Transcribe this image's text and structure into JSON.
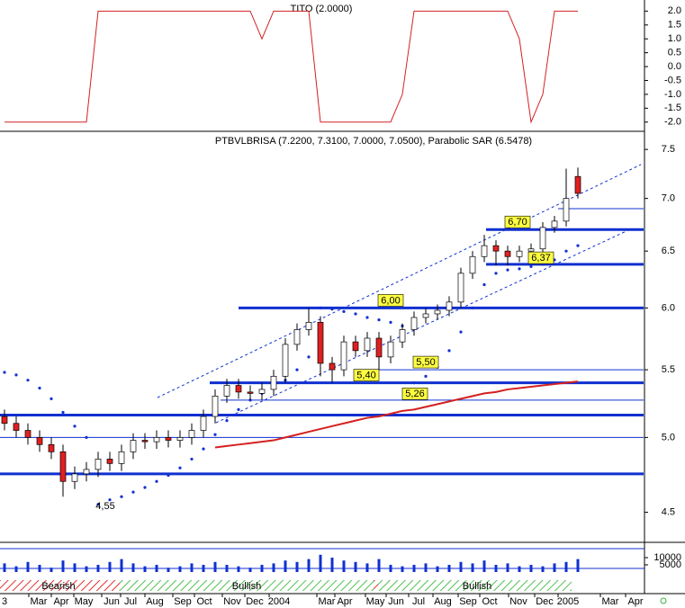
{
  "chart_data": [
    {
      "type": "line",
      "title": "TITO (2.0000)",
      "color": "#d42020",
      "values": [
        -2,
        -2,
        -2,
        -2,
        -2,
        -2,
        -2,
        -2,
        2,
        2,
        2,
        2,
        2,
        2,
        2,
        2,
        2,
        2,
        2,
        2,
        2,
        2,
        1,
        2,
        2,
        2,
        2,
        -2,
        -2,
        -2,
        -2,
        -2,
        -2,
        -2,
        -1,
        2,
        2,
        2,
        2,
        2,
        2,
        2,
        2,
        2,
        1,
        -2,
        -1,
        2,
        2,
        2
      ],
      "ylim": [
        -2.3,
        2.4
      ],
      "yticks": [
        {
          "value": 2,
          "label": "2.0"
        },
        1.5,
        {
          "value": 1,
          "label": "1.0"
        },
        0.5,
        {
          "value": 0,
          "label": "0.0"
        },
        -0.5,
        {
          "value": -1,
          "label": "-1.0"
        },
        -1.5,
        {
          "value": -2,
          "label": "-2.0"
        }
      ]
    },
    {
      "type": "candlestick",
      "title": "PTBVLBRISA (7.2200, 7.3100, 7.0000, 7.0500), Parabolic SAR (6.5478)",
      "open": [
        5.15,
        5.1,
        5.05,
        5.0,
        4.95,
        4.9,
        4.7,
        4.75,
        4.78,
        4.85,
        4.82,
        4.9,
        4.98,
        4.97,
        5.0,
        4.98,
        5.0,
        5.05,
        5.15,
        5.3,
        5.38,
        5.33,
        5.32,
        5.35,
        5.45,
        5.7,
        5.82,
        5.88,
        5.55,
        5.5,
        5.72,
        5.65,
        5.75,
        5.6,
        5.72,
        5.82,
        5.92,
        5.95,
        5.98,
        6.05,
        6.3,
        6.45,
        6.55,
        6.5,
        6.45,
        6.5,
        6.52,
        6.72,
        6.78,
        7.22
      ],
      "high": [
        5.2,
        5.15,
        5.1,
        5.05,
        5.0,
        4.95,
        4.8,
        4.83,
        4.9,
        4.9,
        4.95,
        5.03,
        5.03,
        5.05,
        5.05,
        5.05,
        5.1,
        5.2,
        5.35,
        5.43,
        5.43,
        5.38,
        5.4,
        5.5,
        5.75,
        5.87,
        6.0,
        5.93,
        5.6,
        5.77,
        5.77,
        5.8,
        5.8,
        5.77,
        5.87,
        5.97,
        6.0,
        6.03,
        6.1,
        6.35,
        6.5,
        6.65,
        6.6,
        6.55,
        6.55,
        6.57,
        6.77,
        6.83,
        7.3,
        7.31
      ],
      "low": [
        5.05,
        5.0,
        4.95,
        4.9,
        4.85,
        4.6,
        4.65,
        4.7,
        4.73,
        4.77,
        4.77,
        4.85,
        4.92,
        4.92,
        4.93,
        4.93,
        4.95,
        5.0,
        5.1,
        5.25,
        5.28,
        5.27,
        5.27,
        5.3,
        5.4,
        5.65,
        5.77,
        5.45,
        5.4,
        5.45,
        5.6,
        5.6,
        5.5,
        5.55,
        5.67,
        5.77,
        5.87,
        5.9,
        5.93,
        6.0,
        6.25,
        6.4,
        6.37,
        6.37,
        6.4,
        6.45,
        6.47,
        6.67,
        6.73,
        7.0
      ],
      "close": [
        5.1,
        5.05,
        5.0,
        4.95,
        4.9,
        4.7,
        4.75,
        4.78,
        4.85,
        4.82,
        4.9,
        4.98,
        4.97,
        5.0,
        4.98,
        5.0,
        5.05,
        5.15,
        5.3,
        5.38,
        5.33,
        5.32,
        5.35,
        5.45,
        5.7,
        5.82,
        5.88,
        5.55,
        5.5,
        5.72,
        5.65,
        5.75,
        5.6,
        5.72,
        5.82,
        5.92,
        5.95,
        5.98,
        6.05,
        6.3,
        6.45,
        6.55,
        6.5,
        6.45,
        6.5,
        6.52,
        6.72,
        6.78,
        7.0,
        7.05
      ],
      "sar": [
        5.48,
        5.46,
        5.42,
        5.36,
        5.28,
        5.18,
        5.08,
        5.0,
        4.55,
        4.58,
        4.6,
        4.63,
        4.66,
        4.7,
        4.74,
        4.79,
        4.85,
        4.92,
        5.02,
        5.12,
        5.2,
        5.27,
        5.32,
        5.38,
        5.42,
        5.5,
        5.6,
        6.0,
        5.99,
        5.97,
        5.95,
        5.92,
        5.9,
        5.88,
        5.85,
        5.4,
        5.45,
        5.52,
        5.65,
        5.8,
        6.0,
        6.2,
        6.3,
        6.33,
        6.34,
        6.36,
        6.38,
        6.42,
        6.5,
        6.55
      ],
      "ma": [
        null,
        null,
        null,
        null,
        null,
        null,
        null,
        null,
        null,
        null,
        null,
        null,
        null,
        null,
        null,
        null,
        null,
        null,
        4.93,
        4.94,
        4.95,
        4.96,
        4.97,
        4.98,
        5.0,
        5.02,
        5.04,
        5.06,
        5.08,
        5.1,
        5.12,
        5.14,
        5.15,
        5.17,
        5.19,
        5.2,
        5.22,
        5.24,
        5.26,
        5.28,
        5.3,
        5.32,
        5.33,
        5.35,
        5.36,
        5.37,
        5.38,
        5.39,
        5.4,
        5.41
      ],
      "up_color": "#ffffff",
      "down_color": "#e02020",
      "sar_color": "#1030d0",
      "ma_color": "#d42020",
      "log": true,
      "ylim": [
        4.33,
        7.53
      ],
      "yticks": [
        7.5,
        {
          "value": 7,
          "label": "7.0"
        },
        6.5,
        {
          "value": 6,
          "label": "6.0"
        },
        5.5,
        {
          "value": 5,
          "label": "5.0"
        },
        4.5
      ],
      "levels": [
        {
          "value": 5.16,
          "thick": true
        },
        {
          "value": 4.75,
          "thick": true
        },
        {
          "value": 6.0,
          "thick": true
        },
        {
          "value": 5.4,
          "thick": true
        },
        {
          "value": 6.7,
          "thick": true
        },
        {
          "value": 6.38,
          "thick": true
        },
        {
          "value": 6.9,
          "thick": false
        },
        {
          "value": 5.5,
          "thick": false
        },
        {
          "value": 5.27,
          "thick": false
        },
        {
          "value": 5.0,
          "thick": false
        }
      ],
      "annotations": [
        {
          "label": "6,70",
          "value": 6.7,
          "box": true
        },
        {
          "label": "6,37",
          "value": 6.37,
          "box": true
        },
        {
          "label": "6,00",
          "value": 6.0,
          "box": true
        },
        {
          "label": "5,50",
          "value": 5.5,
          "box": true
        },
        {
          "label": "5,40",
          "value": 5.4,
          "box": true
        },
        {
          "label": "5,26",
          "value": 5.26,
          "box": true
        },
        {
          "label": "4,55",
          "value": 4.55,
          "box": false
        }
      ],
      "x_labels": [
        "3",
        "Mar",
        "Apr",
        "May",
        "Jun",
        "Jul",
        "Aug",
        "Sep",
        "Oct",
        "Nov",
        "Dec",
        "2004",
        "Mar",
        "Apr",
        "May",
        "Jun",
        "Jul",
        "Aug",
        "Sep",
        "Oct",
        "Nov",
        "Dec",
        "2005",
        "Mar",
        "Apr"
      ]
    },
    {
      "type": "bar",
      "color": "#1030d0",
      "values": [
        6000,
        4000,
        7000,
        5000,
        3000,
        8000,
        6000,
        4000,
        5000,
        7000,
        9000,
        6000,
        4000,
        5000,
        3000,
        4000,
        6000,
        5000,
        7000,
        5000,
        4000,
        3000,
        5000,
        6000,
        8000,
        7000,
        9000,
        12000,
        10000,
        8000,
        7000,
        6000,
        9000,
        5000,
        4000,
        5000,
        6000,
        4000,
        5000,
        7000,
        6000,
        8000,
        5000,
        6000,
        4000,
        5000,
        4000,
        6000,
        7000,
        9000
      ],
      "ylim": [
        0,
        20000
      ],
      "yticks": [
        10000,
        5000
      ],
      "regimes": [
        "Bearish",
        "Bullish",
        "Bullish"
      ]
    }
  ]
}
